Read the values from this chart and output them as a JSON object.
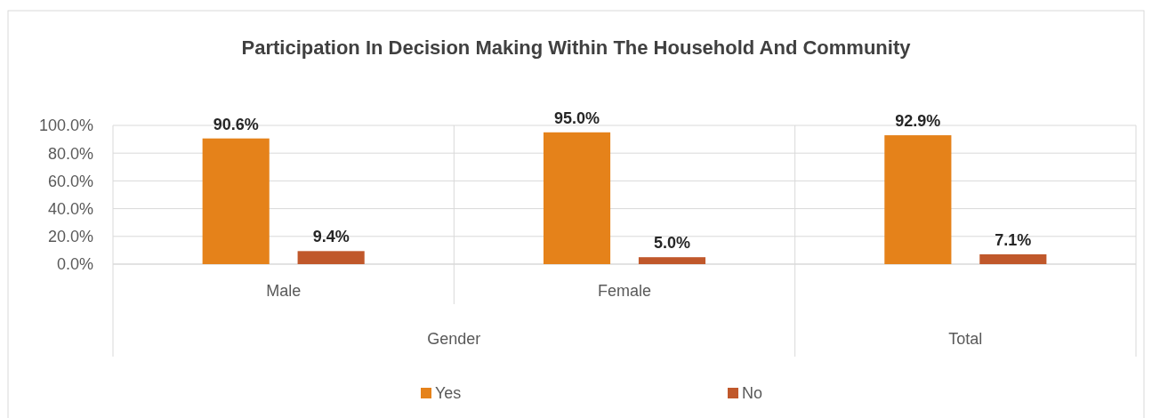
{
  "chart_data": {
    "type": "bar",
    "title": "Participation In Decision Making Within The Household And Community",
    "categories": [
      "Male",
      "Female",
      null
    ],
    "series": [
      {
        "name": "Yes",
        "color": "#e5821a",
        "values": [
          90.6,
          95.0,
          92.9
        ],
        "value_labels": [
          "90.6%",
          "95.0%",
          "92.9%"
        ]
      },
      {
        "name": "No",
        "color": "#c0582b",
        "values": [
          9.4,
          5.0,
          7.1
        ],
        "value_labels": [
          "9.4%",
          "5.0%",
          "7.1%"
        ]
      }
    ],
    "ylim": [
      0,
      100
    ],
    "yticks": [
      {
        "value": 0,
        "label": "0.0%"
      },
      {
        "value": 20,
        "label": "20.0%"
      },
      {
        "value": 40,
        "label": "40.0%"
      },
      {
        "value": 60,
        "label": "60.0%"
      },
      {
        "value": 80,
        "label": "80.0%"
      },
      {
        "value": 100,
        "label": "100.0%"
      }
    ],
    "annotations": [
      "Gender",
      "Total"
    ],
    "grid": "y",
    "legend": "bottom"
  }
}
